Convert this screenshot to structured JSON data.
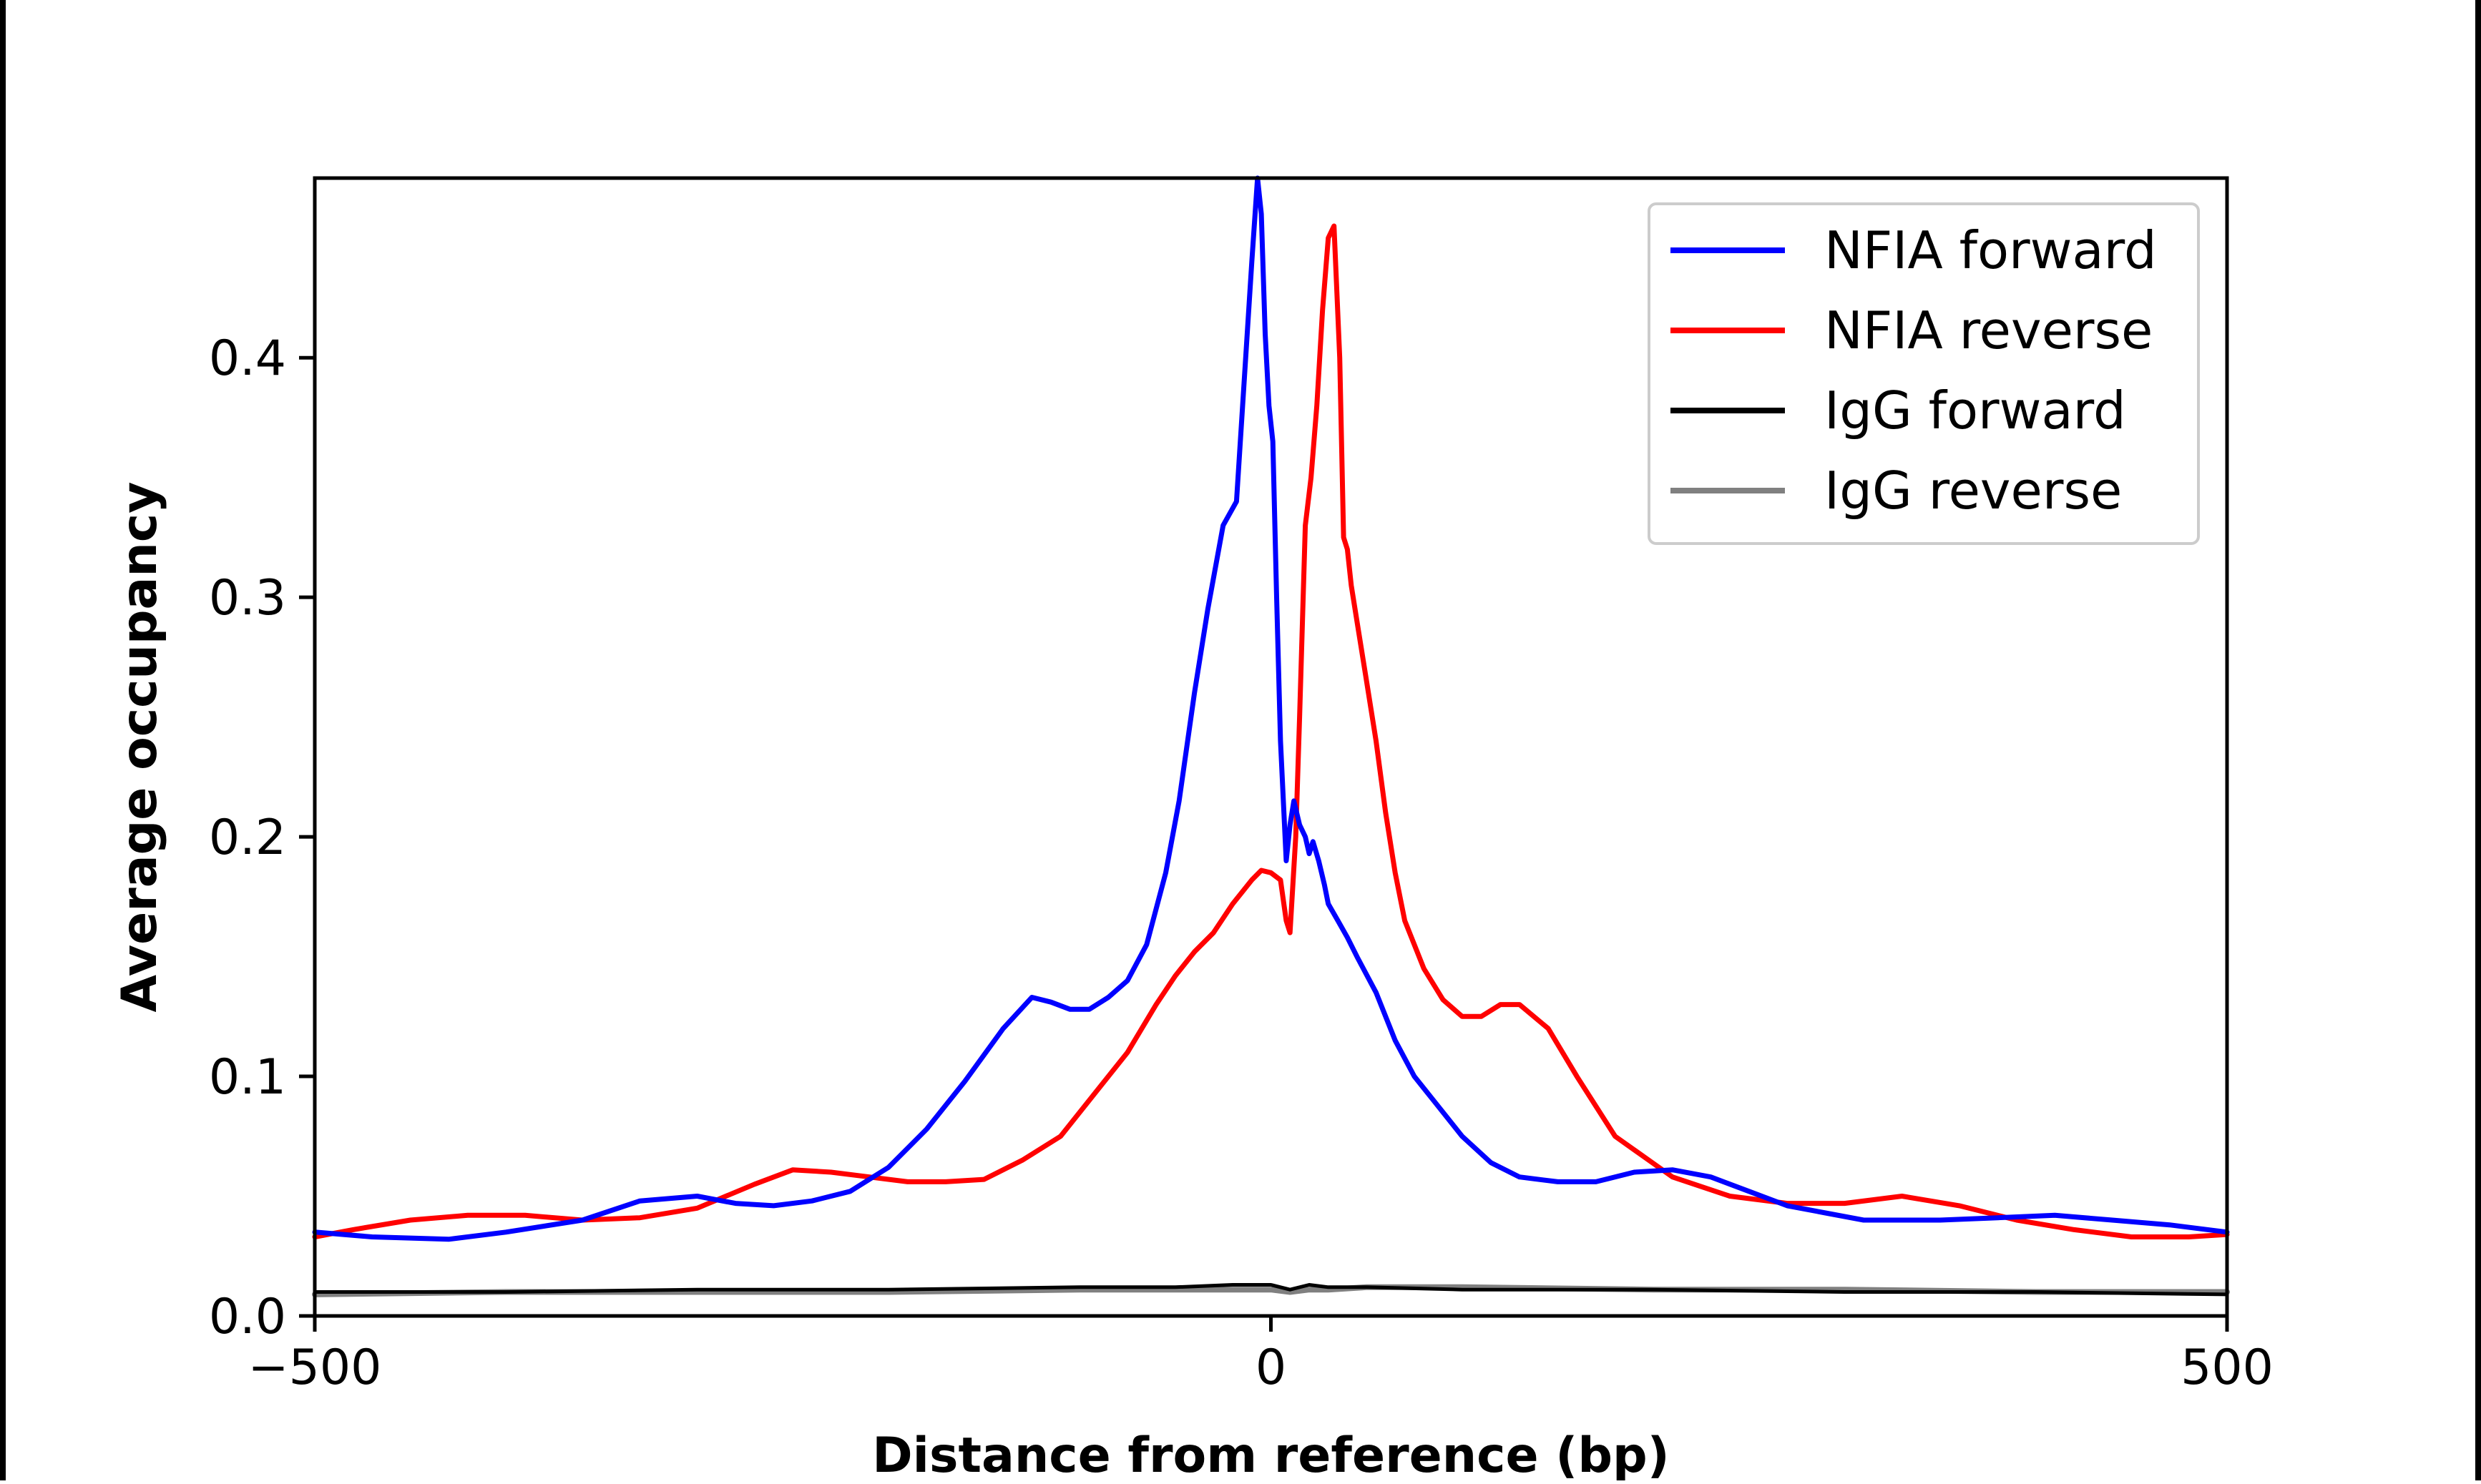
{
  "chart_data": {
    "type": "line",
    "title": "",
    "xlabel": "Distance from reference (bp)",
    "ylabel": "Average occupancy",
    "xlim": [
      -500,
      500
    ],
    "ylim": [
      0,
      0.475
    ],
    "xticks": [
      -500,
      0,
      500
    ],
    "xtick_labels": [
      "−500",
      "0",
      "500"
    ],
    "yticks": [
      0.0,
      0.1,
      0.2,
      0.3,
      0.4
    ],
    "ytick_labels": [
      "0.0",
      "0.1",
      "0.2",
      "0.3",
      "0.4"
    ],
    "grid": false,
    "legend_position": "top-right",
    "series": [
      {
        "name": "NFIA forward",
        "color": "#0000ff",
        "x": [
          -500,
          -470,
          -430,
          -400,
          -360,
          -330,
          -300,
          -280,
          -260,
          -240,
          -220,
          -200,
          -180,
          -160,
          -140,
          -125,
          -115,
          -105,
          -95,
          -85,
          -75,
          -65,
          -55,
          -48,
          -40,
          -33,
          -25,
          -18,
          -14,
          -10,
          -7,
          -5,
          -3,
          -1,
          1,
          3,
          5,
          8,
          10,
          12,
          15,
          18,
          20,
          22,
          25,
          28,
          30,
          35,
          40,
          45,
          55,
          65,
          75,
          85,
          100,
          115,
          130,
          150,
          170,
          190,
          210,
          230,
          250,
          270,
          290,
          310,
          330,
          350,
          380,
          410,
          440,
          470,
          500
        ],
        "y": [
          0.035,
          0.033,
          0.032,
          0.035,
          0.04,
          0.048,
          0.05,
          0.047,
          0.046,
          0.048,
          0.052,
          0.062,
          0.078,
          0.098,
          0.12,
          0.133,
          0.131,
          0.128,
          0.128,
          0.133,
          0.14,
          0.155,
          0.185,
          0.215,
          0.26,
          0.295,
          0.33,
          0.34,
          0.39,
          0.44,
          0.475,
          0.46,
          0.41,
          0.38,
          0.365,
          0.3,
          0.24,
          0.19,
          0.205,
          0.215,
          0.205,
          0.2,
          0.193,
          0.198,
          0.19,
          0.18,
          0.172,
          0.165,
          0.158,
          0.15,
          0.135,
          0.115,
          0.1,
          0.09,
          0.075,
          0.064,
          0.058,
          0.056,
          0.056,
          0.06,
          0.061,
          0.058,
          0.052,
          0.046,
          0.043,
          0.04,
          0.04,
          0.04,
          0.041,
          0.042,
          0.04,
          0.038,
          0.035
        ]
      },
      {
        "name": "NFIA reverse",
        "color": "#ff0000",
        "x": [
          -500,
          -480,
          -450,
          -420,
          -390,
          -360,
          -330,
          -300,
          -270,
          -250,
          -230,
          -210,
          -190,
          -170,
          -150,
          -130,
          -110,
          -90,
          -75,
          -60,
          -50,
          -40,
          -30,
          -20,
          -10,
          -5,
          0,
          5,
          8,
          10,
          13,
          15,
          18,
          21,
          24,
          27,
          30,
          33,
          36,
          38,
          40,
          42,
          45,
          50,
          55,
          60,
          65,
          70,
          80,
          90,
          100,
          110,
          120,
          130,
          145,
          160,
          180,
          210,
          240,
          270,
          300,
          330,
          360,
          390,
          420,
          450,
          480,
          500
        ],
        "y": [
          0.033,
          0.036,
          0.04,
          0.042,
          0.042,
          0.04,
          0.041,
          0.045,
          0.055,
          0.061,
          0.06,
          0.058,
          0.056,
          0.056,
          0.057,
          0.065,
          0.075,
          0.095,
          0.11,
          0.13,
          0.142,
          0.152,
          0.16,
          0.172,
          0.182,
          0.186,
          0.185,
          0.182,
          0.165,
          0.16,
          0.2,
          0.25,
          0.33,
          0.35,
          0.38,
          0.42,
          0.45,
          0.455,
          0.4,
          0.325,
          0.32,
          0.305,
          0.29,
          0.265,
          0.24,
          0.21,
          0.185,
          0.165,
          0.145,
          0.132,
          0.125,
          0.125,
          0.13,
          0.13,
          0.12,
          0.1,
          0.075,
          0.058,
          0.05,
          0.047,
          0.047,
          0.05,
          0.046,
          0.04,
          0.036,
          0.033,
          0.033,
          0.034
        ]
      },
      {
        "name": "IgG forward",
        "color": "#000000",
        "x": [
          -500,
          -400,
          -300,
          -200,
          -100,
          -50,
          -20,
          0,
          10,
          20,
          30,
          50,
          100,
          200,
          300,
          400,
          500
        ],
        "y": [
          0.01,
          0.01,
          0.011,
          0.011,
          0.012,
          0.012,
          0.013,
          0.013,
          0.011,
          0.013,
          0.012,
          0.012,
          0.011,
          0.011,
          0.01,
          0.01,
          0.009
        ],
        "lw": 5
      },
      {
        "name": "IgG reverse",
        "color": "#808080",
        "x": [
          -500,
          -400,
          -300,
          -200,
          -100,
          -50,
          -20,
          0,
          10,
          20,
          30,
          50,
          100,
          200,
          300,
          400,
          500
        ],
        "y": [
          0.009,
          0.01,
          0.01,
          0.01,
          0.011,
          0.011,
          0.011,
          0.011,
          0.01,
          0.011,
          0.011,
          0.012,
          0.012,
          0.011,
          0.011,
          0.01,
          0.01
        ],
        "lw": 8
      }
    ]
  }
}
